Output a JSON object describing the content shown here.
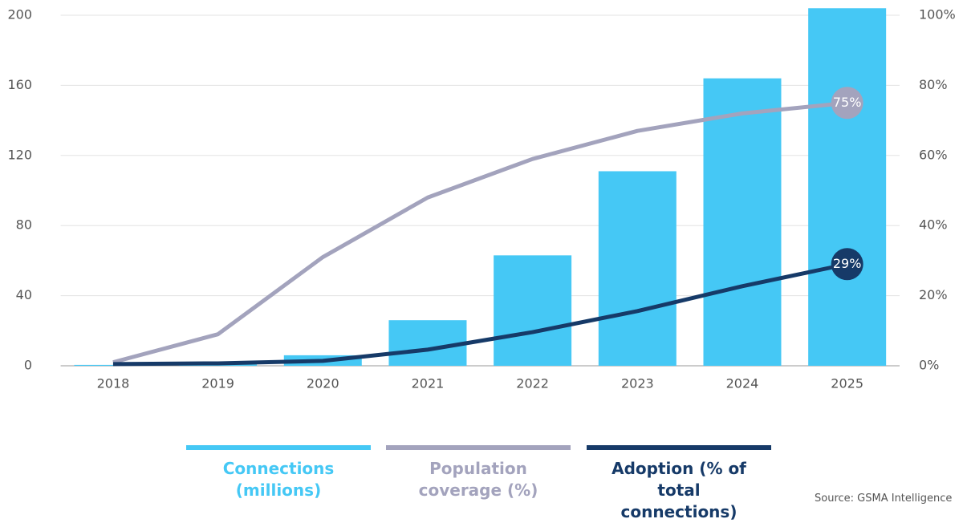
{
  "chart_data": {
    "type": "bar-line",
    "categories": [
      "2018",
      "2019",
      "2020",
      "2021",
      "2022",
      "2023",
      "2024",
      "2025"
    ],
    "series": [
      {
        "name": "Connections (millions)",
        "type": "bar",
        "color": "#45c8f5",
        "values": [
          0.5,
          0.7,
          6,
          26,
          63,
          111,
          164,
          204
        ]
      },
      {
        "name": "Population coverage (%)",
        "type": "line",
        "axis": "y2",
        "color": "#a3a3bd",
        "values": [
          1,
          9,
          31,
          48,
          59,
          67,
          72,
          75
        ],
        "value_labels": [
          null,
          null,
          null,
          null,
          null,
          null,
          null,
          "75%"
        ]
      },
      {
        "name": "Adoption (% of total connections)",
        "type": "line",
        "axis": "y2",
        "color": "#163a68",
        "values": [
          0.5,
          0.7,
          1.4,
          4.6,
          9.6,
          15.6,
          22.7,
          29
        ],
        "value_labels": [
          null,
          null,
          null,
          null,
          null,
          null,
          null,
          "29%"
        ]
      }
    ],
    "ylim": [
      0,
      200
    ],
    "yticks": [
      0,
      40,
      80,
      120,
      160,
      200
    ],
    "y2lim": [
      0,
      100
    ],
    "y2ticks": [
      {
        "value": 0,
        "label": "0%"
      },
      {
        "value": 20,
        "label": "20%"
      },
      {
        "value": 40,
        "label": "40%"
      },
      {
        "value": 60,
        "label": "60%"
      },
      {
        "value": 80,
        "label": "80%"
      },
      {
        "value": 100,
        "label": "100%"
      }
    ],
    "grid": true,
    "source": "Source: GSMA Intelligence"
  }
}
